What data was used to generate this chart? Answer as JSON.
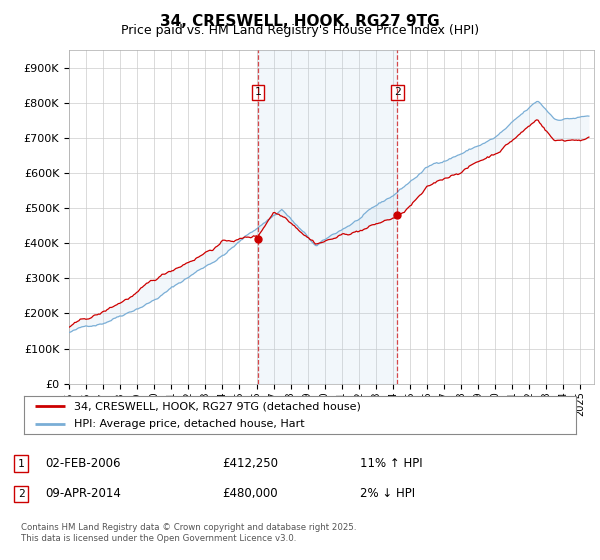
{
  "title": "34, CRESWELL, HOOK, RG27 9TG",
  "subtitle": "Price paid vs. HM Land Registry's House Price Index (HPI)",
  "ylim": [
    0,
    950000
  ],
  "yticks": [
    0,
    100000,
    200000,
    300000,
    400000,
    500000,
    600000,
    700000,
    800000,
    900000
  ],
  "ytick_labels": [
    "£0",
    "£100K",
    "£200K",
    "£300K",
    "£400K",
    "£500K",
    "£600K",
    "£700K",
    "£800K",
    "£900K"
  ],
  "line1_color": "#cc0000",
  "line2_color": "#7aaed6",
  "fill_color": "#cce0f0",
  "vline_color": "#cc0000",
  "marker1_date": 2006.09,
  "marker2_date": 2014.27,
  "marker1_price": 412250,
  "marker2_price": 480000,
  "legend1": "34, CRESWELL, HOOK, RG27 9TG (detached house)",
  "legend2": "HPI: Average price, detached house, Hart",
  "footnote": "Contains HM Land Registry data © Crown copyright and database right 2025.\nThis data is licensed under the Open Government Licence v3.0.",
  "background_color": "#ffffff",
  "plot_bg_color": "#ffffff",
  "grid_color": "#cccccc",
  "title_fontsize": 11,
  "subtitle_fontsize": 9
}
